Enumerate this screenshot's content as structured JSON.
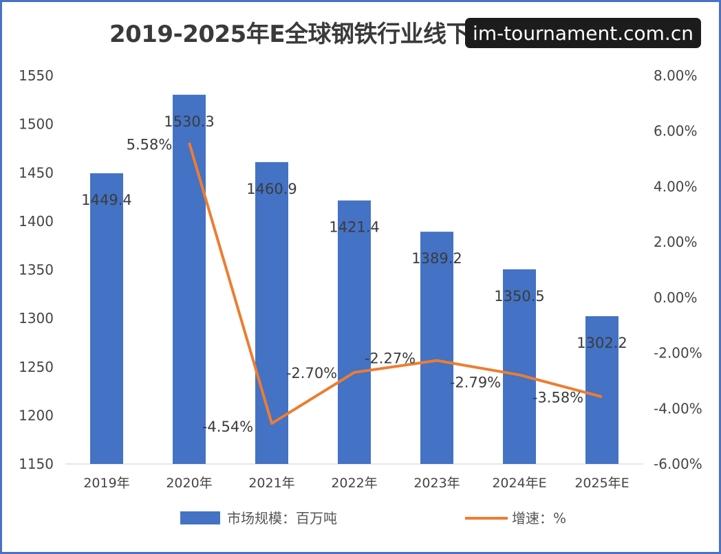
{
  "title": "2019-2025年E全球钢铁行业线下交易市场规模",
  "watermark_badge": "im-tournament.com.cn",
  "colors": {
    "bar": "#4472c4",
    "line": "#ed7d31",
    "frame": "#4a72c4"
  },
  "chart_data": {
    "type": "bar",
    "title": "2019-2025年E全球钢铁行业线下交易市场规模",
    "categories": [
      "2019年",
      "2020年",
      "2021年",
      "2022年",
      "2023年",
      "2024年E",
      "2025年E"
    ],
    "series": [
      {
        "name": "市场规模：百万吨",
        "type": "bar",
        "axis": "left",
        "values": [
          1449.4,
          1530.3,
          1460.9,
          1421.4,
          1389.2,
          1350.5,
          1302.2
        ],
        "labels": [
          "1449.4",
          "1530.3",
          "1460.9",
          "1421.4",
          "1389.2",
          "1350.5",
          "1302.2"
        ]
      },
      {
        "name": "增速：%",
        "type": "line",
        "axis": "right",
        "values": [
          null,
          5.58,
          -4.54,
          -2.7,
          -2.27,
          -2.79,
          -3.58
        ],
        "labels": [
          "",
          "5.58%",
          "-4.54%",
          "-2.70%",
          "-2.27%",
          "-2.79%",
          "-3.58%"
        ]
      }
    ],
    "y_left": {
      "min": 1150,
      "max": 1550,
      "ticks": [
        "1150",
        "1200",
        "1250",
        "1300",
        "1350",
        "1400",
        "1450",
        "1500",
        "1550"
      ]
    },
    "y_right": {
      "min": -6,
      "max": 8,
      "ticks": [
        "-6.00%",
        "-4.00%",
        "-2.00%",
        "0.00%",
        "2.00%",
        "4.00%",
        "6.00%",
        "8.00%"
      ]
    },
    "grid": false,
    "legend": "bottom"
  }
}
